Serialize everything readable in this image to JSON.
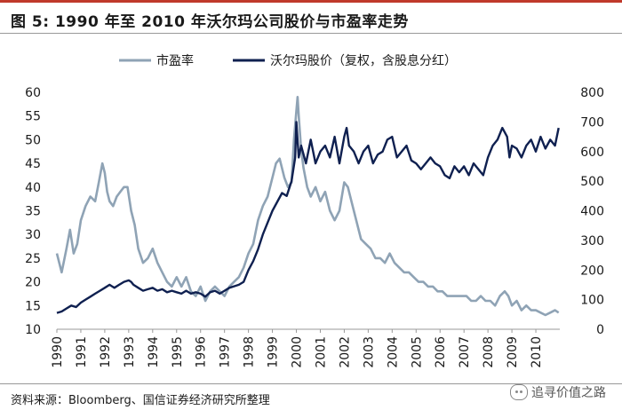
{
  "figure": {
    "title": "图 5: 1990 年至 2010 年沃尔玛公司股价与市盈率走势",
    "source": "资料来源：Bloomberg、国信证券经济研究所整理",
    "brand": "追寻价值之路"
  },
  "chart_data": {
    "type": "line",
    "xlabel": "",
    "ylabel_left": "",
    "ylabel_right": "",
    "xlim": [
      1990,
      2011
    ],
    "ylim_left": [
      10,
      60
    ],
    "ylim_right": [
      0,
      800
    ],
    "x_ticks": [
      "1990",
      "1991",
      "1992",
      "1993",
      "1994",
      "1995",
      "1996",
      "1997",
      "1998",
      "1999",
      "2000",
      "2001",
      "2002",
      "2003",
      "2004",
      "2005",
      "2006",
      "2007",
      "2008",
      "2009",
      "2010"
    ],
    "y_ticks_left": [
      "10",
      "15",
      "20",
      "25",
      "30",
      "35",
      "40",
      "45",
      "50",
      "55",
      "60"
    ],
    "y_ticks_right": [
      "0",
      "100",
      "200",
      "300",
      "400",
      "500",
      "600",
      "700",
      "800"
    ],
    "legend_position": "top",
    "series": [
      {
        "name": "市盈率",
        "axis": "left",
        "color": "#8fa3b5",
        "x": [
          1990.0,
          1990.2,
          1990.4,
          1990.55,
          1990.7,
          1990.85,
          1991.0,
          1991.2,
          1991.4,
          1991.6,
          1991.75,
          1991.9,
          1992.0,
          1992.1,
          1992.2,
          1992.35,
          1992.5,
          1992.65,
          1992.8,
          1992.95,
          1993.1,
          1993.25,
          1993.4,
          1993.6,
          1993.8,
          1994.0,
          1994.2,
          1994.4,
          1994.6,
          1994.8,
          1995.0,
          1995.2,
          1995.4,
          1995.6,
          1995.8,
          1996.0,
          1996.2,
          1996.4,
          1996.6,
          1996.8,
          1997.0,
          1997.2,
          1997.4,
          1997.6,
          1997.8,
          1998.0,
          1998.2,
          1998.4,
          1998.6,
          1998.8,
          1999.0,
          1999.15,
          1999.3,
          1999.5,
          1999.65,
          1999.8,
          1999.9,
          2000.0,
          2000.05,
          2000.1,
          2000.2,
          2000.3,
          2000.45,
          2000.6,
          2000.8,
          2001.0,
          2001.2,
          2001.4,
          2001.6,
          2001.8,
          2002.0,
          2002.15,
          2002.3,
          2002.5,
          2002.7,
          2002.9,
          2003.1,
          2003.3,
          2003.5,
          2003.7,
          2003.9,
          2004.1,
          2004.3,
          2004.5,
          2004.7,
          2004.9,
          2005.1,
          2005.3,
          2005.5,
          2005.7,
          2005.9,
          2006.1,
          2006.3,
          2006.5,
          2006.7,
          2006.9,
          2007.1,
          2007.3,
          2007.5,
          2007.7,
          2007.9,
          2008.1,
          2008.3,
          2008.5,
          2008.7,
          2008.85,
          2009.0,
          2009.2,
          2009.4,
          2009.6,
          2009.8,
          2010.0,
          2010.2,
          2010.4,
          2010.6,
          2010.8,
          2010.95
        ],
        "values": [
          26,
          22,
          27,
          31,
          26,
          28,
          33,
          36,
          38,
          37,
          41,
          45,
          43,
          39,
          37,
          36,
          38,
          39,
          40,
          40,
          35,
          32,
          27,
          24,
          25,
          27,
          24,
          22,
          20,
          19,
          21,
          19,
          21,
          18,
          17,
          19,
          16,
          18,
          19,
          18,
          17,
          19,
          20,
          21,
          23,
          26,
          28,
          33,
          36,
          38,
          42,
          45,
          46,
          42,
          40,
          41,
          50,
          56,
          59,
          55,
          48,
          44,
          40,
          38,
          40,
          37,
          39,
          35,
          33,
          35,
          41,
          40,
          37,
          33,
          29,
          28,
          27,
          25,
          25,
          24,
          26,
          24,
          23,
          22,
          22,
          21,
          20,
          20,
          19,
          19,
          18,
          18,
          17,
          17,
          17,
          17,
          17,
          16,
          16,
          17,
          16,
          16,
          15,
          17,
          18,
          17,
          15,
          16,
          14,
          15,
          14,
          14,
          13.5,
          13,
          13.5,
          14,
          13.5
        ]
      },
      {
        "name": "沃尔玛股价（复权，含股息分红）",
        "axis": "right",
        "color": "#0f2050",
        "x": [
          1990.0,
          1990.2,
          1990.4,
          1990.6,
          1990.8,
          1991.0,
          1991.2,
          1991.4,
          1991.6,
          1991.8,
          1992.0,
          1992.2,
          1992.4,
          1992.6,
          1992.8,
          1993.0,
          1993.1,
          1993.2,
          1993.4,
          1993.6,
          1993.8,
          1994.0,
          1994.2,
          1994.4,
          1994.6,
          1994.8,
          1995.0,
          1995.2,
          1995.4,
          1995.6,
          1995.8,
          1996.0,
          1996.2,
          1996.4,
          1996.6,
          1996.8,
          1997.0,
          1997.2,
          1997.4,
          1997.6,
          1997.8,
          1998.0,
          1998.2,
          1998.4,
          1998.6,
          1998.8,
          1999.0,
          1999.2,
          1999.4,
          1999.6,
          1999.8,
          1999.95,
          2000.0,
          2000.1,
          2000.2,
          2000.4,
          2000.6,
          2000.8,
          2001.0,
          2001.2,
          2001.4,
          2001.6,
          2001.8,
          2002.0,
          2002.1,
          2002.2,
          2002.4,
          2002.6,
          2002.8,
          2003.0,
          2003.2,
          2003.4,
          2003.6,
          2003.8,
          2004.0,
          2004.2,
          2004.4,
          2004.6,
          2004.8,
          2005.0,
          2005.2,
          2005.4,
          2005.6,
          2005.8,
          2006.0,
          2006.2,
          2006.4,
          2006.6,
          2006.8,
          2007.0,
          2007.2,
          2007.4,
          2007.6,
          2007.8,
          2008.0,
          2008.2,
          2008.4,
          2008.6,
          2008.8,
          2008.9,
          2009.0,
          2009.2,
          2009.4,
          2009.6,
          2009.8,
          2010.0,
          2010.2,
          2010.4,
          2010.6,
          2010.8,
          2010.95
        ],
        "values": [
          55,
          60,
          70,
          80,
          75,
          90,
          100,
          110,
          120,
          130,
          140,
          150,
          140,
          150,
          160,
          165,
          160,
          150,
          140,
          130,
          135,
          140,
          130,
          135,
          125,
          130,
          125,
          120,
          130,
          120,
          125,
          120,
          110,
          125,
          130,
          120,
          130,
          140,
          145,
          150,
          160,
          200,
          230,
          270,
          320,
          360,
          400,
          430,
          460,
          450,
          500,
          580,
          700,
          580,
          620,
          560,
          640,
          560,
          600,
          620,
          580,
          650,
          560,
          650,
          680,
          620,
          600,
          560,
          600,
          620,
          560,
          590,
          600,
          640,
          650,
          580,
          600,
          620,
          570,
          560,
          540,
          560,
          580,
          560,
          550,
          520,
          510,
          550,
          530,
          550,
          520,
          560,
          540,
          520,
          580,
          620,
          640,
          680,
          650,
          580,
          620,
          610,
          580,
          620,
          640,
          600,
          650,
          610,
          640,
          620,
          680
        ]
      }
    ]
  }
}
